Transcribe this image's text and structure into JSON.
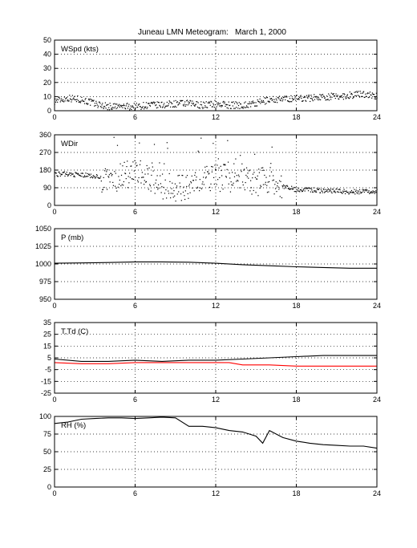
{
  "header": {
    "title": "Juneau LMN Meteogram:",
    "date": "March  1, 2000"
  },
  "colors": {
    "axes": "#000000",
    "temperature": "#000000",
    "dewpoint": "#ff0000",
    "grid": "#000000"
  },
  "chart_data": [
    {
      "type": "scatter",
      "label": "WSpd (kts)",
      "xlim": [
        0,
        24
      ],
      "ylim": [
        0,
        50
      ],
      "xticks": [
        0,
        6,
        12,
        18,
        24
      ],
      "yticks": [
        0,
        10,
        20,
        30,
        40,
        50
      ],
      "grid": true,
      "series": [
        {
          "x": [
            0,
            1,
            2,
            3,
            4,
            5,
            6,
            7,
            8,
            9,
            10,
            11,
            12,
            13,
            14,
            15,
            16,
            17,
            18,
            19,
            20,
            21,
            22,
            23,
            24
          ],
          "y": [
            7,
            9,
            8,
            5,
            3,
            3,
            3,
            4,
            4,
            5,
            5,
            4,
            5,
            4,
            4,
            5,
            8,
            8,
            9,
            9,
            10,
            10,
            11,
            12,
            10
          ]
        }
      ]
    },
    {
      "type": "scatter",
      "label": "WDir",
      "xlim": [
        0,
        24
      ],
      "ylim": [
        0,
        360
      ],
      "xticks": [
        0,
        6,
        12,
        18,
        24
      ],
      "yticks": [
        0,
        90,
        180,
        270,
        360
      ],
      "grid": true,
      "series": [
        {
          "x": [
            0,
            1,
            2,
            3,
            4,
            5,
            6,
            7,
            8,
            9,
            10,
            11,
            12,
            13,
            14,
            15,
            16,
            17,
            18,
            19,
            20,
            21,
            22,
            23,
            24
          ],
          "y": [
            160,
            160,
            155,
            150,
            120,
            150,
            170,
            140,
            100,
            90,
            100,
            130,
            140,
            140,
            130,
            110,
            140,
            100,
            80,
            80,
            75,
            75,
            70,
            70,
            70
          ]
        }
      ]
    },
    {
      "type": "line",
      "label": "P (mb)",
      "xlim": [
        0,
        24
      ],
      "ylim": [
        950,
        1050
      ],
      "xticks": [
        0,
        6,
        12,
        18,
        24
      ],
      "yticks": [
        950,
        975,
        1000,
        1025,
        1050
      ],
      "grid": true,
      "series": [
        {
          "x": [
            0,
            2,
            4,
            6,
            8,
            10,
            12,
            14,
            16,
            18,
            20,
            22,
            24
          ],
          "y": [
            1001,
            1001.5,
            1002,
            1003,
            1003,
            1002.5,
            1001,
            999,
            997.5,
            996,
            995,
            994,
            994
          ]
        }
      ]
    },
    {
      "type": "line",
      "label": "T,Td (C)",
      "xlim": [
        0,
        24
      ],
      "ylim": [
        -25,
        35
      ],
      "xticks": [
        0,
        6,
        12,
        18,
        24
      ],
      "yticks": [
        -25,
        -15,
        -5,
        5,
        15,
        25,
        35
      ],
      "grid": true,
      "series": [
        {
          "x": [
            0,
            2,
            4,
            6,
            8,
            10,
            12,
            14,
            16,
            18,
            20,
            22,
            24
          ],
          "y": [
            4,
            2,
            2,
            3,
            2,
            3,
            3,
            4,
            5,
            6,
            7,
            7,
            7
          ]
        },
        {
          "x": [
            0,
            2,
            4,
            6,
            8,
            10,
            12,
            13,
            14,
            16,
            18,
            20,
            22,
            24
          ],
          "y": [
            1,
            0,
            0,
            1,
            1,
            1,
            1,
            1,
            -1,
            -1,
            -2,
            -2,
            -2,
            -2
          ]
        }
      ]
    },
    {
      "type": "line",
      "label": "RH (%)",
      "xlim": [
        0,
        24
      ],
      "ylim": [
        0,
        100
      ],
      "xticks": [
        0,
        6,
        12,
        18,
        24
      ],
      "yticks": [
        0,
        25,
        50,
        75,
        100
      ],
      "grid": true,
      "series": [
        {
          "x": [
            0,
            1,
            2,
            3,
            4,
            5,
            6,
            7,
            8,
            9,
            10,
            11,
            12,
            13,
            14,
            15,
            15.5,
            16,
            17,
            18,
            19,
            20,
            21,
            22,
            23,
            24
          ],
          "y": [
            90,
            92,
            96,
            97,
            98,
            98,
            97,
            98,
            99,
            98,
            86,
            86,
            84,
            80,
            78,
            72,
            62,
            80,
            70,
            65,
            62,
            60,
            59,
            58,
            58,
            55
          ]
        }
      ]
    }
  ]
}
